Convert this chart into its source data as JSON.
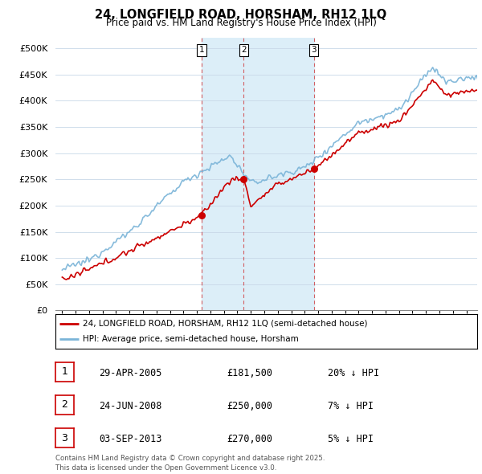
{
  "title": "24, LONGFIELD ROAD, HORSHAM, RH12 1LQ",
  "subtitle": "Price paid vs. HM Land Registry's House Price Index (HPI)",
  "legend_line1": "24, LONGFIELD ROAD, HORSHAM, RH12 1LQ (semi-detached house)",
  "legend_line2": "HPI: Average price, semi-detached house, Horsham",
  "transactions": [
    {
      "num": 1,
      "date": "29-APR-2005",
      "price": 181500,
      "pct": "20%",
      "dir": "↓"
    },
    {
      "num": 2,
      "date": "24-JUN-2008",
      "price": 250000,
      "pct": "7%",
      "dir": "↓"
    },
    {
      "num": 3,
      "date": "03-SEP-2013",
      "price": 270000,
      "pct": "5%",
      "dir": "↓"
    }
  ],
  "vline_dates": [
    2005.33,
    2008.48,
    2013.67
  ],
  "footnote": "Contains HM Land Registry data © Crown copyright and database right 2025.\nThis data is licensed under the Open Government Licence v3.0.",
  "red_color": "#cc0000",
  "blue_color": "#7ab4d8",
  "shade_color": "#dceef8",
  "ylim": [
    0,
    520000
  ],
  "yticks": [
    0,
    50000,
    100000,
    150000,
    200000,
    250000,
    300000,
    350000,
    400000,
    450000,
    500000
  ],
  "xlim_start": 1994.5,
  "xlim_end": 2025.8,
  "bg_color": "#f0f8ff"
}
